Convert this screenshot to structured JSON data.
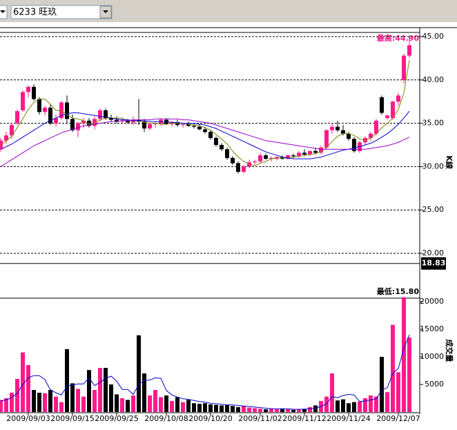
{
  "toolbar": {
    "stock": "6233 旺玖"
  },
  "chart_data": [
    {
      "type": "candlestick",
      "axis_title": "K線",
      "max_label": "最高:44.90",
      "cursor": 18.83,
      "up_color": "#ff1a8c",
      "down_color": "#000000",
      "flat_color": "#b0b0b0",
      "ylim": [
        20,
        45
      ],
      "yticks": [
        {
          "value": 20,
          "label": "20.00"
        },
        {
          "value": 25,
          "label": "25.00"
        },
        {
          "value": 30,
          "label": "30.00"
        },
        {
          "value": 35,
          "label": "35.00"
        },
        {
          "value": 40,
          "label": "40.00"
        },
        {
          "value": 45,
          "label": "45.00"
        }
      ],
      "grid": true,
      "categories": [
        null,
        null,
        null,
        null,
        null,
        "2009/09/03",
        null,
        null,
        null,
        null,
        null,
        null,
        null,
        "2009/09/15",
        null,
        null,
        null,
        null,
        null,
        null,
        null,
        "2009/09/25",
        null,
        null,
        null,
        null,
        null,
        null,
        null,
        null,
        "2009/10/08",
        null,
        null,
        null,
        null,
        null,
        null,
        null,
        "2009/10/20",
        null,
        null,
        null,
        null,
        null,
        null,
        null,
        null,
        "2009/11/02",
        null,
        null,
        null,
        null,
        null,
        null,
        null,
        "2009/11/12",
        null,
        null,
        null,
        null,
        null,
        null,
        null,
        "2009/11/24",
        null,
        null,
        null,
        null,
        null,
        null,
        null,
        null,
        "2009/12/07",
        null,
        null
      ],
      "ohlc": [
        [
          32.0,
          33.3,
          31.7,
          33.0
        ],
        [
          33.0,
          34.0,
          32.6,
          33.6
        ],
        [
          33.6,
          35.0,
          33.2,
          34.8
        ],
        [
          35.0,
          36.6,
          34.8,
          36.4
        ],
        [
          36.5,
          38.8,
          36.3,
          38.6
        ],
        [
          38.6,
          39.4,
          38.0,
          39.2
        ],
        [
          39.2,
          39.5,
          37.6,
          37.8
        ],
        [
          37.8,
          38.0,
          36.0,
          36.3
        ],
        [
          36.3,
          37.0,
          35.9,
          36.8
        ],
        [
          36.8,
          37.2,
          34.8,
          35.0
        ],
        [
          35.0,
          36.0,
          34.6,
          35.6
        ],
        [
          35.6,
          37.6,
          35.4,
          37.4
        ],
        [
          37.4,
          38.2,
          35.0,
          35.5
        ],
        [
          35.5,
          36.0,
          34.0,
          34.2
        ],
        [
          34.2,
          35.2,
          33.4,
          35.0
        ],
        [
          35.0,
          35.6,
          34.4,
          35.3
        ],
        [
          35.3,
          35.6,
          34.5,
          34.7
        ],
        [
          34.7,
          35.8,
          34.3,
          35.5
        ],
        [
          35.5,
          36.7,
          35.2,
          36.5
        ],
        [
          36.5,
          36.7,
          35.4,
          35.6
        ],
        [
          35.6,
          36.0,
          35.2,
          35.4
        ],
        [
          35.4,
          35.8,
          35.0,
          35.2
        ],
        [
          35.2,
          35.6,
          34.9,
          35.3
        ],
        [
          35.3,
          35.5,
          35.0,
          35.1
        ],
        [
          35.1,
          35.8,
          34.8,
          35.4
        ],
        [
          35.4,
          37.8,
          34.8,
          35.2
        ],
        [
          35.2,
          35.5,
          34.0,
          34.4
        ],
        [
          34.4,
          35.0,
          34.2,
          34.9
        ],
        [
          34.9,
          35.2,
          34.5,
          35.0
        ],
        [
          35.0,
          35.6,
          34.7,
          35.4
        ],
        [
          35.4,
          35.6,
          34.8,
          34.9
        ],
        [
          34.9,
          35.3,
          34.6,
          35.1
        ],
        [
          35.1,
          35.4,
          34.6,
          34.8
        ],
        [
          34.8,
          35.0,
          34.5,
          34.9
        ],
        [
          34.9,
          35.2,
          34.6,
          34.7
        ],
        [
          34.7,
          35.0,
          34.4,
          34.6
        ],
        [
          34.6,
          34.9,
          34.2,
          34.3
        ],
        [
          34.3,
          34.6,
          33.8,
          34.0
        ],
        [
          34.0,
          34.2,
          33.1,
          33.3
        ],
        [
          33.3,
          33.5,
          32.3,
          32.5
        ],
        [
          32.5,
          32.7,
          31.8,
          32.0
        ],
        [
          32.0,
          32.2,
          30.8,
          31.0
        ],
        [
          31.0,
          31.2,
          30.2,
          30.4
        ],
        [
          30.4,
          30.6,
          29.2,
          29.4
        ],
        [
          29.4,
          30.2,
          29.2,
          30.0
        ],
        [
          30.0,
          30.8,
          29.8,
          30.5
        ],
        [
          30.5,
          30.8,
          30.2,
          30.6
        ],
        [
          30.6,
          31.6,
          30.4,
          31.3
        ],
        [
          31.3,
          31.5,
          30.8,
          30.9
        ],
        [
          30.9,
          31.2,
          30.6,
          31.0
        ],
        [
          30.9,
          31.2,
          30.7,
          31.1
        ],
        [
          31.1,
          31.3,
          30.8,
          30.9
        ],
        [
          30.9,
          31.4,
          30.8,
          31.3
        ],
        [
          31.3,
          31.5,
          31.0,
          31.2
        ],
        [
          31.2,
          31.8,
          31.0,
          31.6
        ],
        [
          31.6,
          32.0,
          31.2,
          31.4
        ],
        [
          31.4,
          31.9,
          31.2,
          31.8
        ],
        [
          31.8,
          32.2,
          31.4,
          31.6
        ],
        [
          31.6,
          32.4,
          31.4,
          32.2
        ],
        [
          32.2,
          34.3,
          32.0,
          34.2
        ],
        [
          34.2,
          35.0,
          33.8,
          34.6
        ],
        [
          34.6,
          35.3,
          34.0,
          34.2
        ],
        [
          34.2,
          34.8,
          33.6,
          33.8
        ],
        [
          33.8,
          34.0,
          33.0,
          33.2
        ],
        [
          33.2,
          33.4,
          31.6,
          31.8
        ],
        [
          31.8,
          33.0,
          31.6,
          32.8
        ],
        [
          32.8,
          33.5,
          32.5,
          33.3
        ],
        [
          33.3,
          34.0,
          33.0,
          33.8
        ],
        [
          33.8,
          35.5,
          33.6,
          35.3
        ],
        [
          38.0,
          38.2,
          36.0,
          36.2
        ],
        [
          35.6,
          36.0,
          35.4,
          35.9
        ],
        [
          35.6,
          37.6,
          35.4,
          37.5
        ],
        [
          37.5,
          38.5,
          37.0,
          38.2
        ],
        [
          40.0,
          43.0,
          39.6,
          42.8
        ],
        [
          42.8,
          44.9,
          42.5,
          44.0
        ]
      ],
      "series": [
        {
          "color": "#808000",
          "values": [
            32.5,
            33.0,
            33.5,
            34.5,
            35.5,
            36.6,
            37.4,
            37.8,
            37.8,
            37.2,
            36.5,
            36.4,
            36.0,
            35.6,
            35.5,
            35.3,
            34.9,
            35.0,
            35.4,
            35.6,
            35.6,
            35.6,
            35.6,
            35.3,
            35.3,
            35.3,
            35.1,
            35.0,
            35.0,
            34.9,
            34.9,
            35.0,
            35.0,
            35.0,
            34.9,
            34.8,
            34.7,
            34.5,
            34.2,
            33.7,
            33.2,
            32.6,
            31.8,
            31.1,
            30.6,
            30.3,
            30.1,
            30.4,
            30.6,
            30.9,
            31.0,
            31.0,
            31.0,
            31.1,
            31.2,
            31.3,
            31.4,
            31.5,
            31.7,
            32.2,
            32.9,
            33.5,
            33.8,
            33.8,
            33.6,
            33.2,
            33.0,
            33.3,
            33.8,
            34.5,
            35.0,
            35.6,
            36.6,
            38.5,
            42.3
          ]
        },
        {
          "color": "#0000cc",
          "values": [
            32.0,
            32.3,
            32.6,
            33.0,
            33.4,
            33.8,
            34.2,
            34.6,
            35.0,
            35.3,
            35.6,
            35.9,
            36.1,
            36.2,
            36.2,
            36.1,
            36.0,
            35.9,
            35.8,
            35.7,
            35.6,
            35.5,
            35.4,
            35.4,
            35.3,
            35.3,
            35.3,
            35.2,
            35.2,
            35.2,
            35.2,
            35.1,
            35.1,
            35.0,
            35.0,
            35.0,
            34.9,
            34.8,
            34.6,
            34.4,
            34.1,
            33.8,
            33.5,
            33.2,
            32.9,
            32.6,
            32.3,
            32.0,
            31.7,
            31.5,
            31.3,
            31.1,
            31.0,
            30.9,
            30.9,
            30.9,
            30.9,
            31.0,
            31.1,
            31.3,
            31.5,
            31.7,
            31.9,
            32.0,
            32.2,
            32.3,
            32.5,
            32.7,
            33.0,
            33.4,
            33.8,
            34.3,
            34.9,
            35.6,
            36.4
          ]
        },
        {
          "color": "#9900cc",
          "values": [
            30.0,
            30.4,
            30.8,
            31.2,
            31.6,
            32.0,
            32.4,
            32.7,
            33.0,
            33.3,
            33.6,
            33.9,
            34.1,
            34.3,
            34.5,
            34.7,
            34.8,
            34.9,
            35.0,
            35.1,
            35.2,
            35.2,
            35.3,
            35.3,
            35.4,
            35.4,
            35.4,
            35.4,
            35.5,
            35.5,
            35.5,
            35.5,
            35.5,
            35.4,
            35.4,
            35.3,
            35.2,
            35.1,
            35.0,
            34.8,
            34.6,
            34.4,
            34.2,
            34.0,
            33.8,
            33.6,
            33.4,
            33.2,
            33.0,
            32.9,
            32.8,
            32.7,
            32.6,
            32.5,
            32.4,
            32.3,
            32.2,
            32.1,
            32.0,
            32.0,
            32.0,
            32.0,
            32.0,
            32.0,
            32.0,
            32.0,
            32.0,
            32.1,
            32.2,
            32.3,
            32.4,
            32.6,
            32.8,
            33.1,
            33.4
          ]
        }
      ]
    },
    {
      "type": "bar",
      "axis_title": "成交量",
      "annotation": "最低:15.80",
      "ylim": [
        0,
        20000
      ],
      "yticks": [
        5000,
        10000,
        15000,
        20000
      ],
      "values": [
        2200,
        2500,
        3500,
        6000,
        10800,
        8500,
        4000,
        3500,
        3400,
        4000,
        2800,
        1800,
        11400,
        5200,
        4200,
        2800,
        7600,
        4000,
        8000,
        8000,
        5000,
        3200,
        2500,
        2200,
        3000,
        13900,
        7000,
        3000,
        4000,
        2700,
        3000,
        2000,
        2700,
        1800,
        2200,
        1600,
        1500,
        1600,
        1400,
        1300,
        1200,
        1300,
        1100,
        900,
        1100,
        800,
        700,
        600,
        500,
        600,
        500,
        600,
        500,
        400,
        500,
        600,
        900,
        1200,
        2000,
        2800,
        7000,
        2100,
        2300,
        1600,
        1800,
        1900,
        2500,
        3000,
        2800,
        10000,
        3600,
        15800,
        7200,
        20800,
        13500
      ],
      "series": [
        {
          "color": "#0000cc",
          "values": [
            2000,
            2200,
            2600,
            3400,
            5000,
            6200,
            6600,
            6600,
            5900,
            4000,
            3500,
            3100,
            4700,
            4900,
            5100,
            5100,
            6200,
            4800,
            5400,
            6100,
            6500,
            5600,
            4100,
            4100,
            3200,
            5000,
            5700,
            5800,
            6200,
            6100,
            3900,
            3100,
            2700,
            2400,
            2300,
            2100,
            1900,
            1800,
            1600,
            1500,
            1400,
            1300,
            1300,
            1200,
            1100,
            1000,
            900,
            800,
            700,
            600,
            600,
            600,
            600,
            500,
            500,
            500,
            600,
            700,
            1000,
            1500,
            2800,
            2600,
            3000,
            3200,
            3100,
            1900,
            2000,
            2200,
            2400,
            4000,
            4400,
            7000,
            7900,
            11500,
            14000
          ]
        }
      ]
    }
  ]
}
